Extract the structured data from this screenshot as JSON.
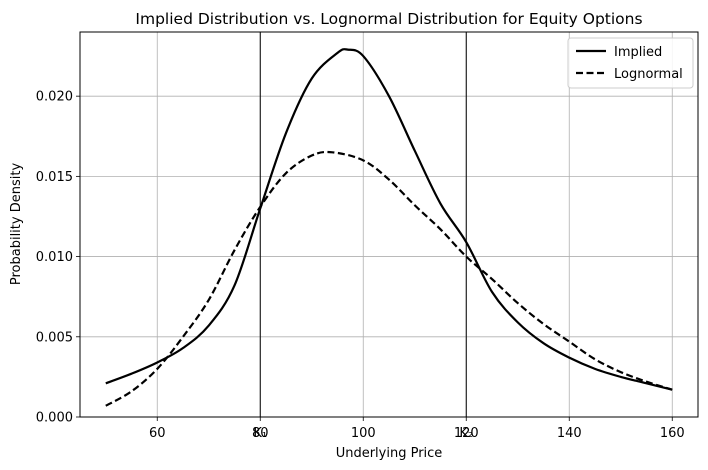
{
  "chart_data": {
    "type": "line",
    "title": "Implied Distribution vs. Lognormal Distribution for Equity Options",
    "xlabel": "Underlying Price",
    "ylabel": "Probability Density",
    "xlim": [
      45,
      165
    ],
    "ylim": [
      0,
      0.024
    ],
    "xticks": [
      60,
      80,
      100,
      120,
      140,
      160
    ],
    "yticks": [
      0.0,
      0.005,
      0.01,
      0.015,
      0.02
    ],
    "ytick_labels": [
      "0.000",
      "0.005",
      "0.010",
      "0.015",
      "0.020"
    ],
    "grid": true,
    "legend_position": "top-right",
    "vlines": [
      {
        "x": 80,
        "label": "K₁"
      },
      {
        "x": 120,
        "label": "K₂"
      }
    ],
    "series": [
      {
        "name": "Implied",
        "style": "solid",
        "color": "#000000",
        "x": [
          50,
          55,
          60,
          65,
          70,
          75,
          80,
          85,
          90,
          95,
          97,
          100,
          105,
          110,
          115,
          120,
          125,
          130,
          135,
          140,
          145,
          150,
          155,
          160
        ],
        "y": [
          0.0021,
          0.0027,
          0.0034,
          0.0043,
          0.0057,
          0.0082,
          0.013,
          0.0177,
          0.0211,
          0.0227,
          0.0229,
          0.0225,
          0.02,
          0.0166,
          0.0133,
          0.0109,
          0.0078,
          0.0059,
          0.0046,
          0.0037,
          0.003,
          0.0025,
          0.0021,
          0.0017
        ]
      },
      {
        "name": "Lognormal",
        "style": "dashed",
        "color": "#000000",
        "x": [
          50,
          55,
          60,
          65,
          70,
          75,
          80,
          85,
          90,
          94,
          100,
          105,
          110,
          115,
          120,
          125,
          130,
          135,
          140,
          145,
          150,
          155,
          160
        ],
        "y": [
          0.0007,
          0.0016,
          0.003,
          0.005,
          0.0073,
          0.0104,
          0.0131,
          0.0152,
          0.0163,
          0.0165,
          0.016,
          0.0148,
          0.0132,
          0.0117,
          0.01,
          0.0086,
          0.0071,
          0.0058,
          0.0047,
          0.0036,
          0.0028,
          0.0022,
          0.0017
        ]
      }
    ]
  }
}
